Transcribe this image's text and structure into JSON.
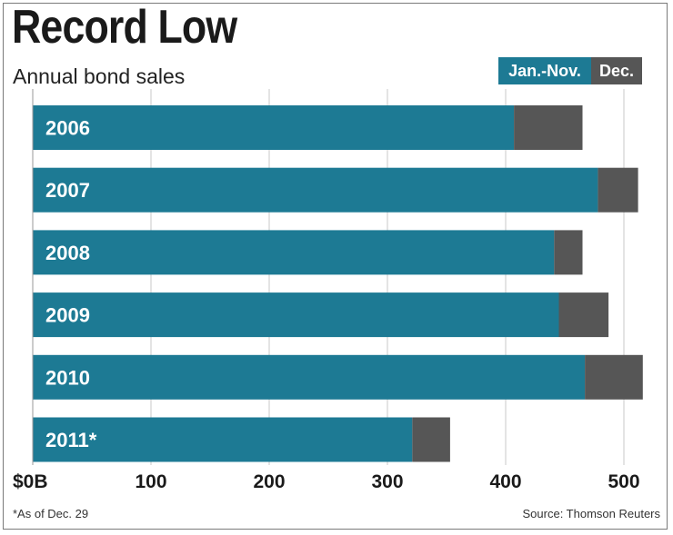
{
  "chart_data": {
    "type": "bar",
    "orientation": "horizontal",
    "stacked": true,
    "title": "Record Low",
    "subtitle": "Annual bond sales",
    "categories": [
      "2006",
      "2007",
      "2008",
      "2009",
      "2010",
      "2011*"
    ],
    "series": [
      {
        "name": "Jan.-Nov.",
        "color": "#1d7a94",
        "values": [
          407,
          478,
          441,
          445,
          467,
          321
        ]
      },
      {
        "name": "Dec.",
        "color": "#565656",
        "values": [
          58,
          34,
          24,
          42,
          49,
          32
        ]
      }
    ],
    "xticks": [
      "$0B",
      "100",
      "200",
      "300",
      "400",
      "500"
    ],
    "xtick_values": [
      0,
      100,
      200,
      300,
      400,
      500
    ],
    "xlim": [
      0,
      520
    ],
    "grid": true,
    "legend_position": "top-right",
    "footnote": "*As of Dec. 29",
    "source": "Source: Thomson Reuters"
  }
}
